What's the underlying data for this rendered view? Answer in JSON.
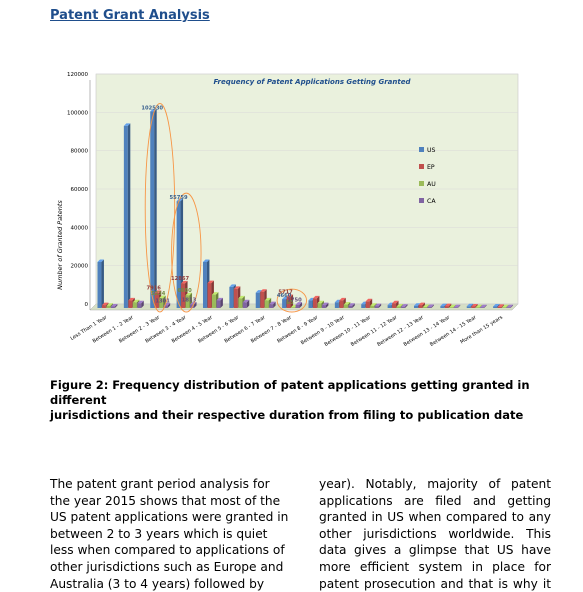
{
  "page": {
    "heading": "Patent Grant Analysis",
    "caption_lines": [
      "Figure 2: Frequency distribution of patent applications getting granted in different",
      "jurisdictions and their respective duration from filing to publication date"
    ],
    "left_column": [
      "The patent grant period analysis for",
      "the year 2015 shows that most of the",
      "US patent applications were granted in",
      "between 2 to 3 years which is quiet",
      "less when compared to applications of",
      "other jurisdictions such as Europe and",
      "Australia (3 to 4 years) followed by"
    ],
    "right_column": [
      "year). Notably, majority of patent",
      "applications are filed and getting",
      "granted in US when compared to any",
      "other jurisdictions worldwide. This",
      "data gives a glimpse that US have",
      "more efficient system in place for",
      "patent prosecution and that is why it"
    ]
  },
  "chart_data": {
    "type": "bar",
    "title": "Frequency of Patent Applications Getting Granted",
    "ylabel": "Number of Granted Patents",
    "ylim": [
      0,
      120000
    ],
    "yticks": [
      "0",
      "20000",
      "40000",
      "60000",
      "80000",
      "100000",
      "120000"
    ],
    "categories": [
      "Less Than 1 Year",
      "Between 1 - 2 Year",
      "Between 2 - 3 Year",
      "Between 3 - 4 Year",
      "Between 4 - 5 Year",
      "Between 5 - 6 Year",
      "Between 6 - 7 Year",
      "Between 7 - 8 Year",
      "Between 8 - 9 Year",
      "Between 9 - 10 Year",
      "Between 10 - 11 Year",
      "Between 11 - 12 Year",
      "Between 12 - 13 Year",
      "Between 13 - 14 Year",
      "Between 14 - 15 Year",
      "More than 15 years"
    ],
    "series": [
      {
        "name": "US",
        "color": "#4f81bd",
        "values": [
          24000,
          95000,
          102530,
          55759,
          24000,
          11000,
          8000,
          4660,
          4000,
          3000,
          2000,
          1500,
          1200,
          1000,
          900,
          800
        ]
      },
      {
        "name": "EP",
        "color": "#c0504d",
        "values": [
          1500,
          4000,
          7916,
          12867,
          13000,
          10000,
          8500,
          5717,
          5000,
          4000,
          3500,
          2500,
          1500,
          1000,
          800,
          600
        ]
      },
      {
        "name": "AU",
        "color": "#9bbb59",
        "values": [
          1200,
          3000,
          5234,
          6660,
          7000,
          5000,
          4000,
          85,
          2500,
          1800,
          1200,
          800,
          500,
          400,
          300,
          200
        ]
      },
      {
        "name": "CA",
        "color": "#8064a2",
        "values": [
          800,
          2500,
          1301,
          1813,
          4000,
          3000,
          2000,
          1750,
          1500,
          1200,
          1000,
          700,
          500,
          400,
          300,
          200
        ]
      }
    ],
    "data_labels": [
      {
        "series": 0,
        "index": 2,
        "text": "102530"
      },
      {
        "series": 0,
        "index": 3,
        "text": "55759"
      },
      {
        "series": 1,
        "index": 3,
        "text": "12867"
      },
      {
        "series": 1,
        "index": 2,
        "text": "7916"
      },
      {
        "series": 2,
        "index": 3,
        "text": "6660"
      },
      {
        "series": 2,
        "index": 2,
        "text": "5234"
      },
      {
        "series": 3,
        "index": 3,
        "text": "1813"
      },
      {
        "series": 3,
        "index": 2,
        "text": "1301"
      },
      {
        "series": 0,
        "index": 7,
        "text": "4660"
      },
      {
        "series": 1,
        "index": 7,
        "text": "5717"
      },
      {
        "series": 2,
        "index": 7,
        "text": "85"
      },
      {
        "series": 3,
        "index": 7,
        "text": "1750"
      }
    ],
    "legend_position": "right",
    "highlight_circles_on": [
      "Between 2 - 3 Year",
      "Between 3 - 4 Year",
      "Between 7 - 8 Year"
    ],
    "colors": {
      "plot_background": "#eaf1dd",
      "highlight": "#f79646"
    }
  }
}
